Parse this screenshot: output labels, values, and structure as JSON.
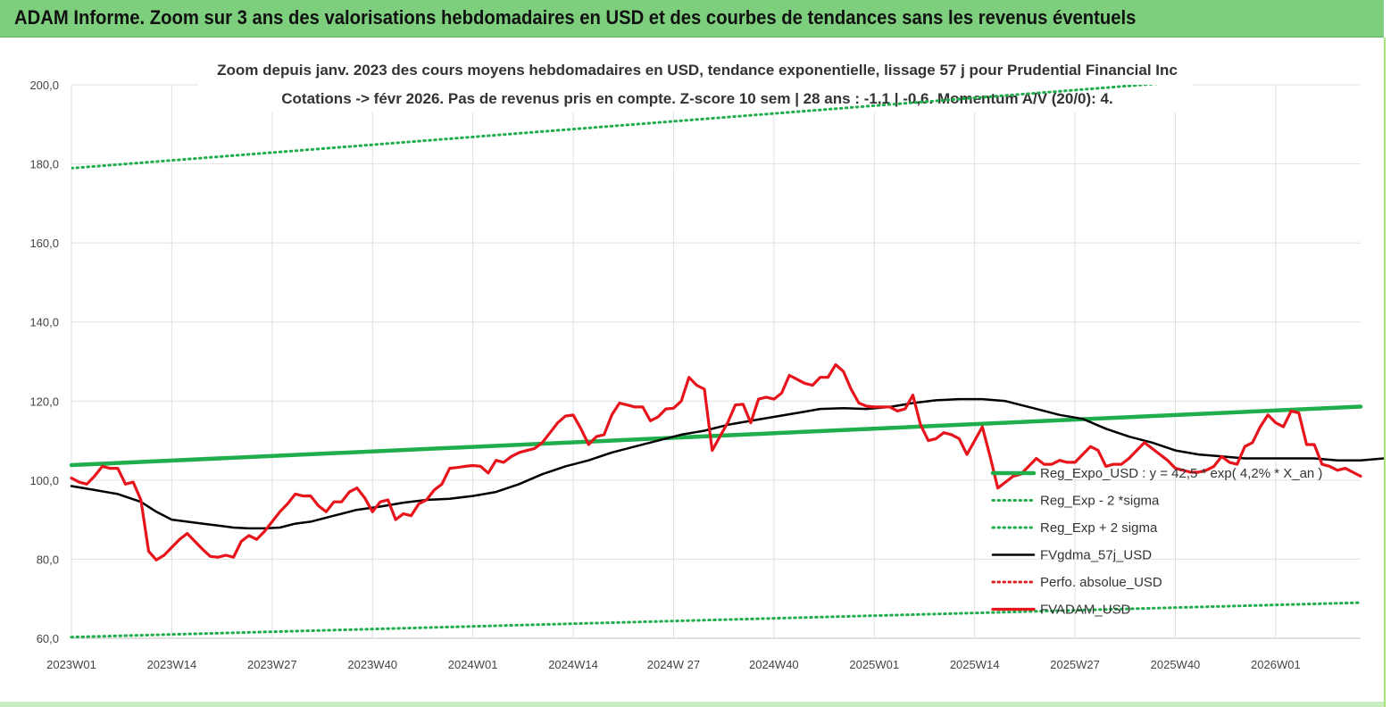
{
  "header": {
    "title": "ADAM Informe. Zoom sur 3 ans des valorisations hebdomadaires en USD et des courbes de tendances sans les revenus éventuels"
  },
  "chart_data": {
    "type": "line",
    "title": "Zoom depuis janv. 2023 des cours moyens hebdomadaires en USD, tendance exponentielle, lissage 57 j pour Prudential Financial Inc",
    "subtitle": "Cotations -> févr 2026.  Pas de revenus pris en compte. Z-score 10 sem  | 28 ans : -1,1 | -0,6. Momentum A/V (20/0): 4.",
    "xlabel": "",
    "ylabel": "",
    "ylim": [
      60,
      200
    ],
    "y_ticks": [
      "60,0",
      "80,0",
      "100,0",
      "120,0",
      "140,0",
      "160,0",
      "180,0",
      "200,0"
    ],
    "x_ticks": [
      "2023W01",
      "2023W14",
      "2023W27",
      "2023W40",
      "2024W01",
      "2024W14",
      "2024W 27",
      "2024W40",
      "2025W01",
      "2025W14",
      "2025W27",
      "2025W40",
      "2026W01"
    ],
    "x_range_weeks": [
      0,
      167
    ],
    "grid": true,
    "legend_position": "lower-right",
    "series": [
      {
        "name": "Reg_Expo_USD : y = 42,5 * exp( 4,2% *  X_an )",
        "style": "solid-thick",
        "color": "#1fae4b",
        "points": [
          [
            0,
            103.8
          ],
          [
            167,
            118.6
          ]
        ]
      },
      {
        "name": "Reg_Exp - 2 *sigma",
        "style": "dotted",
        "color": "#1fae4b",
        "points": [
          [
            0,
            60.3
          ],
          [
            167,
            69.0
          ]
        ]
      },
      {
        "name": "Reg_Exp + 2 sigma",
        "style": "dotted",
        "color": "#1fae4b",
        "points": [
          [
            0,
            178.9
          ],
          [
            167,
            204.3
          ]
        ]
      },
      {
        "name": "FVgdma_57j_USD",
        "style": "solid",
        "color": "#000000",
        "points": [
          [
            0,
            98.5
          ],
          [
            3,
            97.5
          ],
          [
            6,
            96.5
          ],
          [
            9,
            94.5
          ],
          [
            11,
            92
          ],
          [
            13,
            90
          ],
          [
            15,
            89.5
          ],
          [
            17,
            89
          ],
          [
            19,
            88.5
          ],
          [
            21,
            88
          ],
          [
            23,
            87.8
          ],
          [
            25,
            87.8
          ],
          [
            27,
            88
          ],
          [
            29,
            89
          ],
          [
            31,
            89.5
          ],
          [
            34,
            91
          ],
          [
            37,
            92.5
          ],
          [
            40,
            93.3
          ],
          [
            43,
            94.3
          ],
          [
            46,
            95
          ],
          [
            49,
            95.3
          ],
          [
            52,
            96
          ],
          [
            55,
            97
          ],
          [
            58,
            99
          ],
          [
            61,
            101.5
          ],
          [
            64,
            103.5
          ],
          [
            67,
            105
          ],
          [
            70,
            107
          ],
          [
            73,
            108.5
          ],
          [
            76,
            110
          ],
          [
            79,
            111.5
          ],
          [
            82,
            112.5
          ],
          [
            85,
            114
          ],
          [
            88,
            115
          ],
          [
            91,
            116
          ],
          [
            94,
            117
          ],
          [
            97,
            118
          ],
          [
            100,
            118.2
          ],
          [
            103,
            118
          ],
          [
            106,
            118.5
          ],
          [
            109,
            119.5
          ],
          [
            112,
            120.2
          ],
          [
            115,
            120.5
          ],
          [
            118,
            120.5
          ],
          [
            121,
            120
          ],
          [
            123,
            119
          ],
          [
            125,
            118
          ],
          [
            128,
            116.5
          ],
          [
            131,
            115.5
          ],
          [
            134,
            113
          ],
          [
            137,
            111
          ],
          [
            140,
            109.5
          ],
          [
            143,
            107.5
          ],
          [
            146,
            106.5
          ],
          [
            149,
            106
          ],
          [
            152,
            105.5
          ],
          [
            155,
            105.5
          ],
          [
            158,
            105.5
          ],
          [
            161,
            105.5
          ],
          [
            164,
            105
          ],
          [
            167,
            105
          ],
          [
            170,
            105.5
          ],
          [
            173,
            106.5
          ],
          [
            176,
            108
          ],
          [
            179,
            108
          ],
          [
            181,
            107.5
          ],
          [
            184,
            106
          ],
          [
            186,
            105
          ],
          [
            188,
            104.3
          ]
        ]
      },
      {
        "name": "Perfo. absolue_USD",
        "style": "dotted",
        "color": "#e02020",
        "points": []
      },
      {
        "name": "FVADAM_USD",
        "style": "solid-thick",
        "color": "#e8141c",
        "points": [
          [
            0,
            100.5
          ],
          [
            1,
            99.5
          ],
          [
            2,
            99
          ],
          [
            3,
            101
          ],
          [
            4,
            103.5
          ],
          [
            5,
            103
          ],
          [
            6,
            103
          ],
          [
            7,
            99
          ],
          [
            8,
            99.5
          ],
          [
            9,
            95
          ],
          [
            10,
            82
          ],
          [
            11,
            79.8
          ],
          [
            12,
            81
          ],
          [
            13,
            83
          ],
          [
            14,
            85
          ],
          [
            15,
            86.5
          ],
          [
            16,
            84.5
          ],
          [
            17,
            82.5
          ],
          [
            18,
            80.7
          ],
          [
            19,
            80.5
          ],
          [
            20,
            81
          ],
          [
            21,
            80.5
          ],
          [
            22,
            84.5
          ],
          [
            23,
            86
          ],
          [
            24,
            85
          ],
          [
            25,
            87
          ],
          [
            26,
            89.5
          ],
          [
            27,
            92
          ],
          [
            28,
            94
          ],
          [
            29,
            96.5
          ],
          [
            30,
            96
          ],
          [
            31,
            96
          ],
          [
            32,
            93.5
          ],
          [
            33,
            92
          ],
          [
            34,
            94.5
          ],
          [
            35,
            94.5
          ],
          [
            36,
            97
          ],
          [
            37,
            98
          ],
          [
            38,
            95.5
          ],
          [
            39,
            92
          ],
          [
            40,
            94.5
          ],
          [
            41,
            95
          ],
          [
            42,
            90
          ],
          [
            43,
            91.5
          ],
          [
            44,
            91
          ],
          [
            45,
            94
          ],
          [
            46,
            95
          ],
          [
            47,
            97.5
          ],
          [
            48,
            99
          ],
          [
            49,
            103
          ],
          [
            50,
            103.2
          ],
          [
            51,
            103.5
          ],
          [
            52,
            103.7
          ],
          [
            53,
            103.5
          ],
          [
            54,
            101.8
          ],
          [
            55,
            105
          ],
          [
            56,
            104.5
          ],
          [
            57,
            106
          ],
          [
            58,
            107
          ],
          [
            59,
            107.5
          ],
          [
            60,
            108
          ],
          [
            61,
            109.5
          ],
          [
            62,
            112
          ],
          [
            63,
            114.5
          ],
          [
            64,
            116.2
          ],
          [
            65,
            116.5
          ],
          [
            66,
            113
          ],
          [
            67,
            109
          ],
          [
            68,
            111
          ],
          [
            69,
            111.5
          ],
          [
            70,
            116.5
          ],
          [
            71,
            119.5
          ],
          [
            72,
            119
          ],
          [
            73,
            118.5
          ],
          [
            74,
            118.5
          ],
          [
            75,
            115
          ],
          [
            76,
            116
          ],
          [
            77,
            118
          ],
          [
            78,
            118.2
          ],
          [
            79,
            120
          ],
          [
            80,
            126
          ],
          [
            81,
            124
          ],
          [
            82,
            123
          ],
          [
            83,
            107.5
          ],
          [
            84,
            111
          ],
          [
            85,
            114.5
          ],
          [
            86,
            119
          ],
          [
            87,
            119.2
          ],
          [
            88,
            114.5
          ],
          [
            89,
            120.5
          ],
          [
            90,
            121
          ],
          [
            91,
            120.5
          ],
          [
            92,
            122
          ],
          [
            93,
            126.5
          ],
          [
            94,
            125.5
          ],
          [
            95,
            124.5
          ],
          [
            96,
            124
          ],
          [
            97,
            126
          ],
          [
            98,
            126
          ],
          [
            99,
            129.2
          ],
          [
            100,
            127.5
          ],
          [
            101,
            123
          ],
          [
            102,
            119.5
          ],
          [
            103,
            118.7
          ],
          [
            104,
            118.5
          ],
          [
            105,
            118.5
          ],
          [
            106,
            118.5
          ],
          [
            107,
            117.5
          ],
          [
            108,
            118
          ],
          [
            109,
            121.5
          ],
          [
            110,
            114
          ],
          [
            111,
            110
          ],
          [
            112,
            110.5
          ],
          [
            113,
            112
          ],
          [
            114,
            111.5
          ],
          [
            115,
            110.5
          ],
          [
            116,
            106.5
          ],
          [
            117,
            110
          ],
          [
            118,
            113.5
          ],
          [
            119,
            106
          ],
          [
            120,
            98
          ],
          [
            121,
            99.5
          ],
          [
            122,
            101
          ],
          [
            123,
            101.5
          ],
          [
            124,
            103.5
          ],
          [
            125,
            105.5
          ],
          [
            126,
            104
          ],
          [
            127,
            104
          ],
          [
            128,
            105
          ],
          [
            129,
            104.5
          ],
          [
            130,
            104.5
          ],
          [
            131,
            106.5
          ],
          [
            132,
            108.5
          ],
          [
            133,
            107.5
          ],
          [
            134,
            103.5
          ],
          [
            135,
            104
          ],
          [
            136,
            104
          ],
          [
            137,
            105.5
          ],
          [
            138,
            107.5
          ],
          [
            139,
            109.5
          ],
          [
            140,
            108
          ],
          [
            141,
            106.5
          ],
          [
            142,
            105
          ],
          [
            143,
            103
          ],
          [
            144,
            102.5
          ],
          [
            145,
            102
          ],
          [
            146,
            102
          ],
          [
            147,
            102.5
          ],
          [
            148,
            103.5
          ],
          [
            149,
            106
          ],
          [
            150,
            104.5
          ],
          [
            151,
            104
          ],
          [
            152,
            108.5
          ],
          [
            153,
            109.5
          ],
          [
            154,
            113.5
          ],
          [
            155,
            116.5
          ],
          [
            156,
            114.5
          ],
          [
            157,
            113.5
          ],
          [
            158,
            117.5
          ],
          [
            159,
            117
          ],
          [
            160,
            109
          ],
          [
            161,
            109
          ],
          [
            162,
            104
          ],
          [
            163,
            103.5
          ],
          [
            164,
            102.5
          ],
          [
            165,
            103
          ],
          [
            166,
            102
          ],
          [
            167,
            101
          ]
        ]
      }
    ]
  }
}
